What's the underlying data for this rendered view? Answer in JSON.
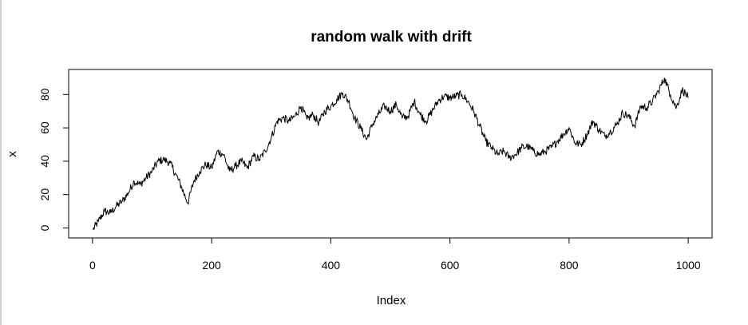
{
  "chart_data": {
    "type": "line",
    "title": "random walk with drift",
    "xlabel": "Index",
    "ylabel": "x",
    "xlim": [
      -40,
      1040
    ],
    "ylim": [
      -6,
      95
    ],
    "xticks": [
      0,
      200,
      400,
      600,
      800,
      1000
    ],
    "yticks": [
      0,
      20,
      40,
      60,
      80
    ],
    "grid": false,
    "legend": "none",
    "line_color": "#000000",
    "series": [
      {
        "x": [
          1,
          10,
          20,
          30,
          40,
          50,
          60,
          70,
          80,
          90,
          100,
          110,
          120,
          130,
          140,
          150,
          160,
          170,
          180,
          190,
          200,
          210,
          220,
          230,
          240,
          250,
          260,
          270,
          280,
          290,
          300,
          310,
          320,
          330,
          340,
          350,
          360,
          370,
          380,
          390,
          400,
          410,
          420,
          430,
          440,
          450,
          460,
          470,
          480,
          490,
          500,
          510,
          520,
          530,
          540,
          550,
          560,
          570,
          580,
          590,
          600,
          610,
          620,
          630,
          640,
          650,
          660,
          670,
          680,
          690,
          700,
          710,
          720,
          730,
          740,
          750,
          760,
          770,
          780,
          790,
          800,
          810,
          820,
          830,
          840,
          850,
          860,
          870,
          880,
          890,
          900,
          910,
          920,
          930,
          940,
          950,
          960,
          970,
          980,
          990,
          1000
        ],
        "y": [
          -1,
          4,
          10,
          9,
          13,
          16,
          21,
          28,
          26,
          30,
          34,
          40,
          41,
          39,
          32,
          24,
          15,
          28,
          34,
          38,
          36,
          46,
          44,
          34,
          37,
          40,
          36,
          43,
          41,
          46,
          54,
          64,
          66,
          64,
          67,
          73,
          65,
          68,
          63,
          70,
          73,
          77,
          81,
          76,
          66,
          60,
          53,
          62,
          68,
          73,
          70,
          74,
          66,
          67,
          76,
          68,
          64,
          70,
          76,
          79,
          78,
          79,
          80,
          76,
          70,
          61,
          52,
          48,
          44,
          46,
          42,
          44,
          48,
          49,
          46,
          44,
          46,
          48,
          52,
          56,
          60,
          51,
          50,
          56,
          64,
          59,
          55,
          58,
          62,
          69,
          67,
          61,
          73,
          72,
          76,
          82,
          90,
          80,
          72,
          83,
          78
        ]
      }
    ]
  }
}
